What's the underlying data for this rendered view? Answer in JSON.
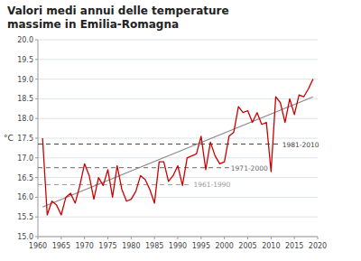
{
  "chart_data": {
    "type": "line",
    "title": "Valori medi annui delle temperature\nmassime in Emilia-Romagna",
    "ylabel": "°C",
    "xlim": [
      1960,
      2020
    ],
    "ylim": [
      15.0,
      20.0
    ],
    "xticks": [
      1960,
      1965,
      1970,
      1975,
      1980,
      1985,
      1990,
      1995,
      2000,
      2005,
      2010,
      2015,
      2020
    ],
    "yticks": [
      {
        "value": 15.0,
        "label": "15.0"
      },
      15.5,
      {
        "value": 16.0,
        "label": "16.0"
      },
      16.5,
      {
        "value": 17.0,
        "label": "17.0"
      },
      17.5,
      {
        "value": 18.0,
        "label": "18.0"
      },
      18.5,
      {
        "value": 19.0,
        "label": "19.0"
      },
      19.5,
      {
        "value": 20.0,
        "label": "20.0"
      }
    ],
    "grid": true,
    "x": [
      1961,
      1962,
      1963,
      1964,
      1965,
      1966,
      1967,
      1968,
      1969,
      1970,
      1971,
      1972,
      1973,
      1974,
      1975,
      1976,
      1977,
      1978,
      1979,
      1980,
      1981,
      1982,
      1983,
      1984,
      1985,
      1986,
      1987,
      1988,
      1989,
      1990,
      1991,
      1992,
      1993,
      1994,
      1995,
      1996,
      1997,
      1998,
      1999,
      2000,
      2001,
      2002,
      2003,
      2004,
      2005,
      2006,
      2007,
      2008,
      2009,
      2010,
      2011,
      2012,
      2013,
      2014,
      2015,
      2016,
      2017,
      2018,
      2019
    ],
    "series": [
      {
        "color": "#cc0000",
        "line_style": "solid",
        "values": [
          17.5,
          15.55,
          15.9,
          15.8,
          15.55,
          16.0,
          16.1,
          15.85,
          16.3,
          16.85,
          16.55,
          15.95,
          16.5,
          16.3,
          16.7,
          16.0,
          16.8,
          16.2,
          15.9,
          15.95,
          16.15,
          16.55,
          16.45,
          16.2,
          15.85,
          16.9,
          16.9,
          16.4,
          16.55,
          16.8,
          16.3,
          17.0,
          17.05,
          17.1,
          17.55,
          16.7,
          17.4,
          17.05,
          16.85,
          16.9,
          17.55,
          17.65,
          18.3,
          18.15,
          18.2,
          17.9,
          18.15,
          17.85,
          17.9,
          16.65,
          18.55,
          18.4,
          17.9,
          18.5,
          18.1,
          18.6,
          18.55,
          18.75,
          19.0
        ]
      }
    ],
    "trend": {
      "x": [
        1961,
        2019
      ],
      "values": [
        15.75,
        18.55
      ],
      "color": "#888888",
      "line_style": "solid"
    },
    "reference_lines": [
      {
        "label": "1961-1990",
        "value": 16.32,
        "x": [
          1960,
          1993
        ],
        "color": "#999999",
        "line_style": "dashed"
      },
      {
        "label": "1971-2000",
        "value": 16.75,
        "x": [
          1960,
          2001
        ],
        "color": "#666666",
        "line_style": "dashed"
      },
      {
        "label": "1981-2010",
        "value": 17.35,
        "x": [
          1960,
          2012
        ],
        "color": "#444444",
        "line_style": "dashed"
      }
    ]
  }
}
